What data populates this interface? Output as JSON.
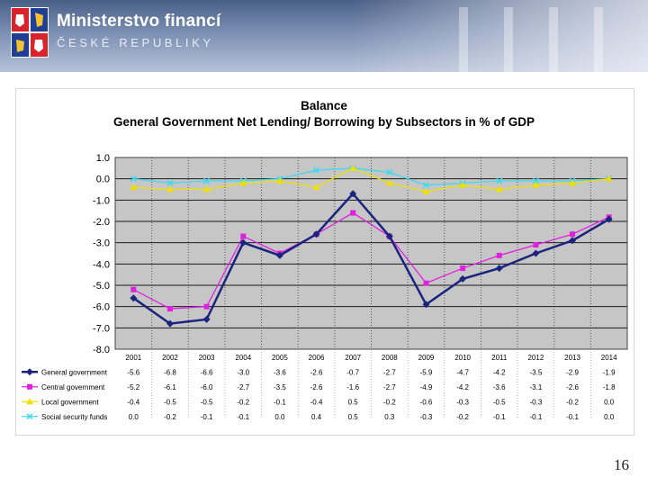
{
  "header": {
    "title": "Ministerstvo financí",
    "subtitle": "ČESKÉ REPUBLIKY"
  },
  "page_number": "16",
  "chart_data": {
    "type": "line",
    "title": "Balance",
    "subtitle": "General Government Net Lending/ Borrowing by Subsectors in % of GDP",
    "categories": [
      "2001",
      "2002",
      "2003",
      "2004",
      "2005",
      "2006",
      "2007",
      "2008",
      "2009",
      "2010",
      "2011",
      "2012",
      "2013",
      "2014"
    ],
    "ylim": [
      -8.0,
      1.0
    ],
    "yticks": [
      "1.0",
      "0.0",
      "-1.0",
      "-2.0",
      "-3.0",
      "-4.0",
      "-5.0",
      "-6.0",
      "-7.0",
      "-8.0"
    ],
    "grid": true,
    "series": [
      {
        "name": "General government",
        "color": "#1a237e",
        "marker": "diamond",
        "values": [
          -5.6,
          -6.8,
          -6.6,
          -3.0,
          -3.6,
          -2.6,
          -0.7,
          -2.7,
          -5.9,
          -4.7,
          -4.2,
          -3.5,
          -2.9,
          -1.9
        ],
        "labels": [
          "-5.6",
          "-6.8",
          "-6.6",
          "-3.0",
          "-3.6",
          "-2.6",
          "-0.7",
          "-2.7",
          "-5.9",
          "-4.7",
          "-4.2",
          "-3.5",
          "-2.9",
          "-1.9"
        ]
      },
      {
        "name": "Central government",
        "color": "#e020e0",
        "marker": "square",
        "values": [
          -5.2,
          -6.1,
          -6.0,
          -2.7,
          -3.5,
          -2.6,
          -1.6,
          -2.7,
          -4.9,
          -4.2,
          -3.6,
          -3.1,
          -2.6,
          -1.8
        ],
        "labels": [
          "-5.2",
          "-6.1",
          "-6.0",
          "-2.7",
          "-3.5",
          "-2.6",
          "-1.6",
          "-2.7",
          "-4.9",
          "-4.2",
          "-3.6",
          "-3.1",
          "-2.6",
          "-1.8"
        ]
      },
      {
        "name": "Local government",
        "color": "#f0e000",
        "marker": "triangle",
        "values": [
          -0.4,
          -0.5,
          -0.5,
          -0.2,
          -0.1,
          -0.4,
          0.5,
          -0.2,
          -0.6,
          -0.3,
          -0.5,
          -0.3,
          -0.2,
          0.0
        ],
        "labels": [
          "-0.4",
          "-0.5",
          "-0.5",
          "-0.2",
          "-0.1",
          "-0.4",
          "0.5",
          "-0.2",
          "-0.6",
          "-0.3",
          "-0.5",
          "-0.3",
          "-0.2",
          "0.0"
        ]
      },
      {
        "name": "Social security funds",
        "color": "#40d8f0",
        "marker": "x",
        "values": [
          0.0,
          -0.2,
          -0.1,
          -0.1,
          0.0,
          0.4,
          0.5,
          0.3,
          -0.3,
          -0.2,
          -0.1,
          -0.1,
          -0.1,
          0.0
        ],
        "labels": [
          "0.0",
          "-0.2",
          "-0.1",
          "-0.1",
          "0.0",
          "0.4",
          "0.5",
          "0.3",
          "-0.3",
          "-0.2",
          "-0.1",
          "-0.1",
          "-0.1",
          "0.0"
        ]
      }
    ]
  }
}
